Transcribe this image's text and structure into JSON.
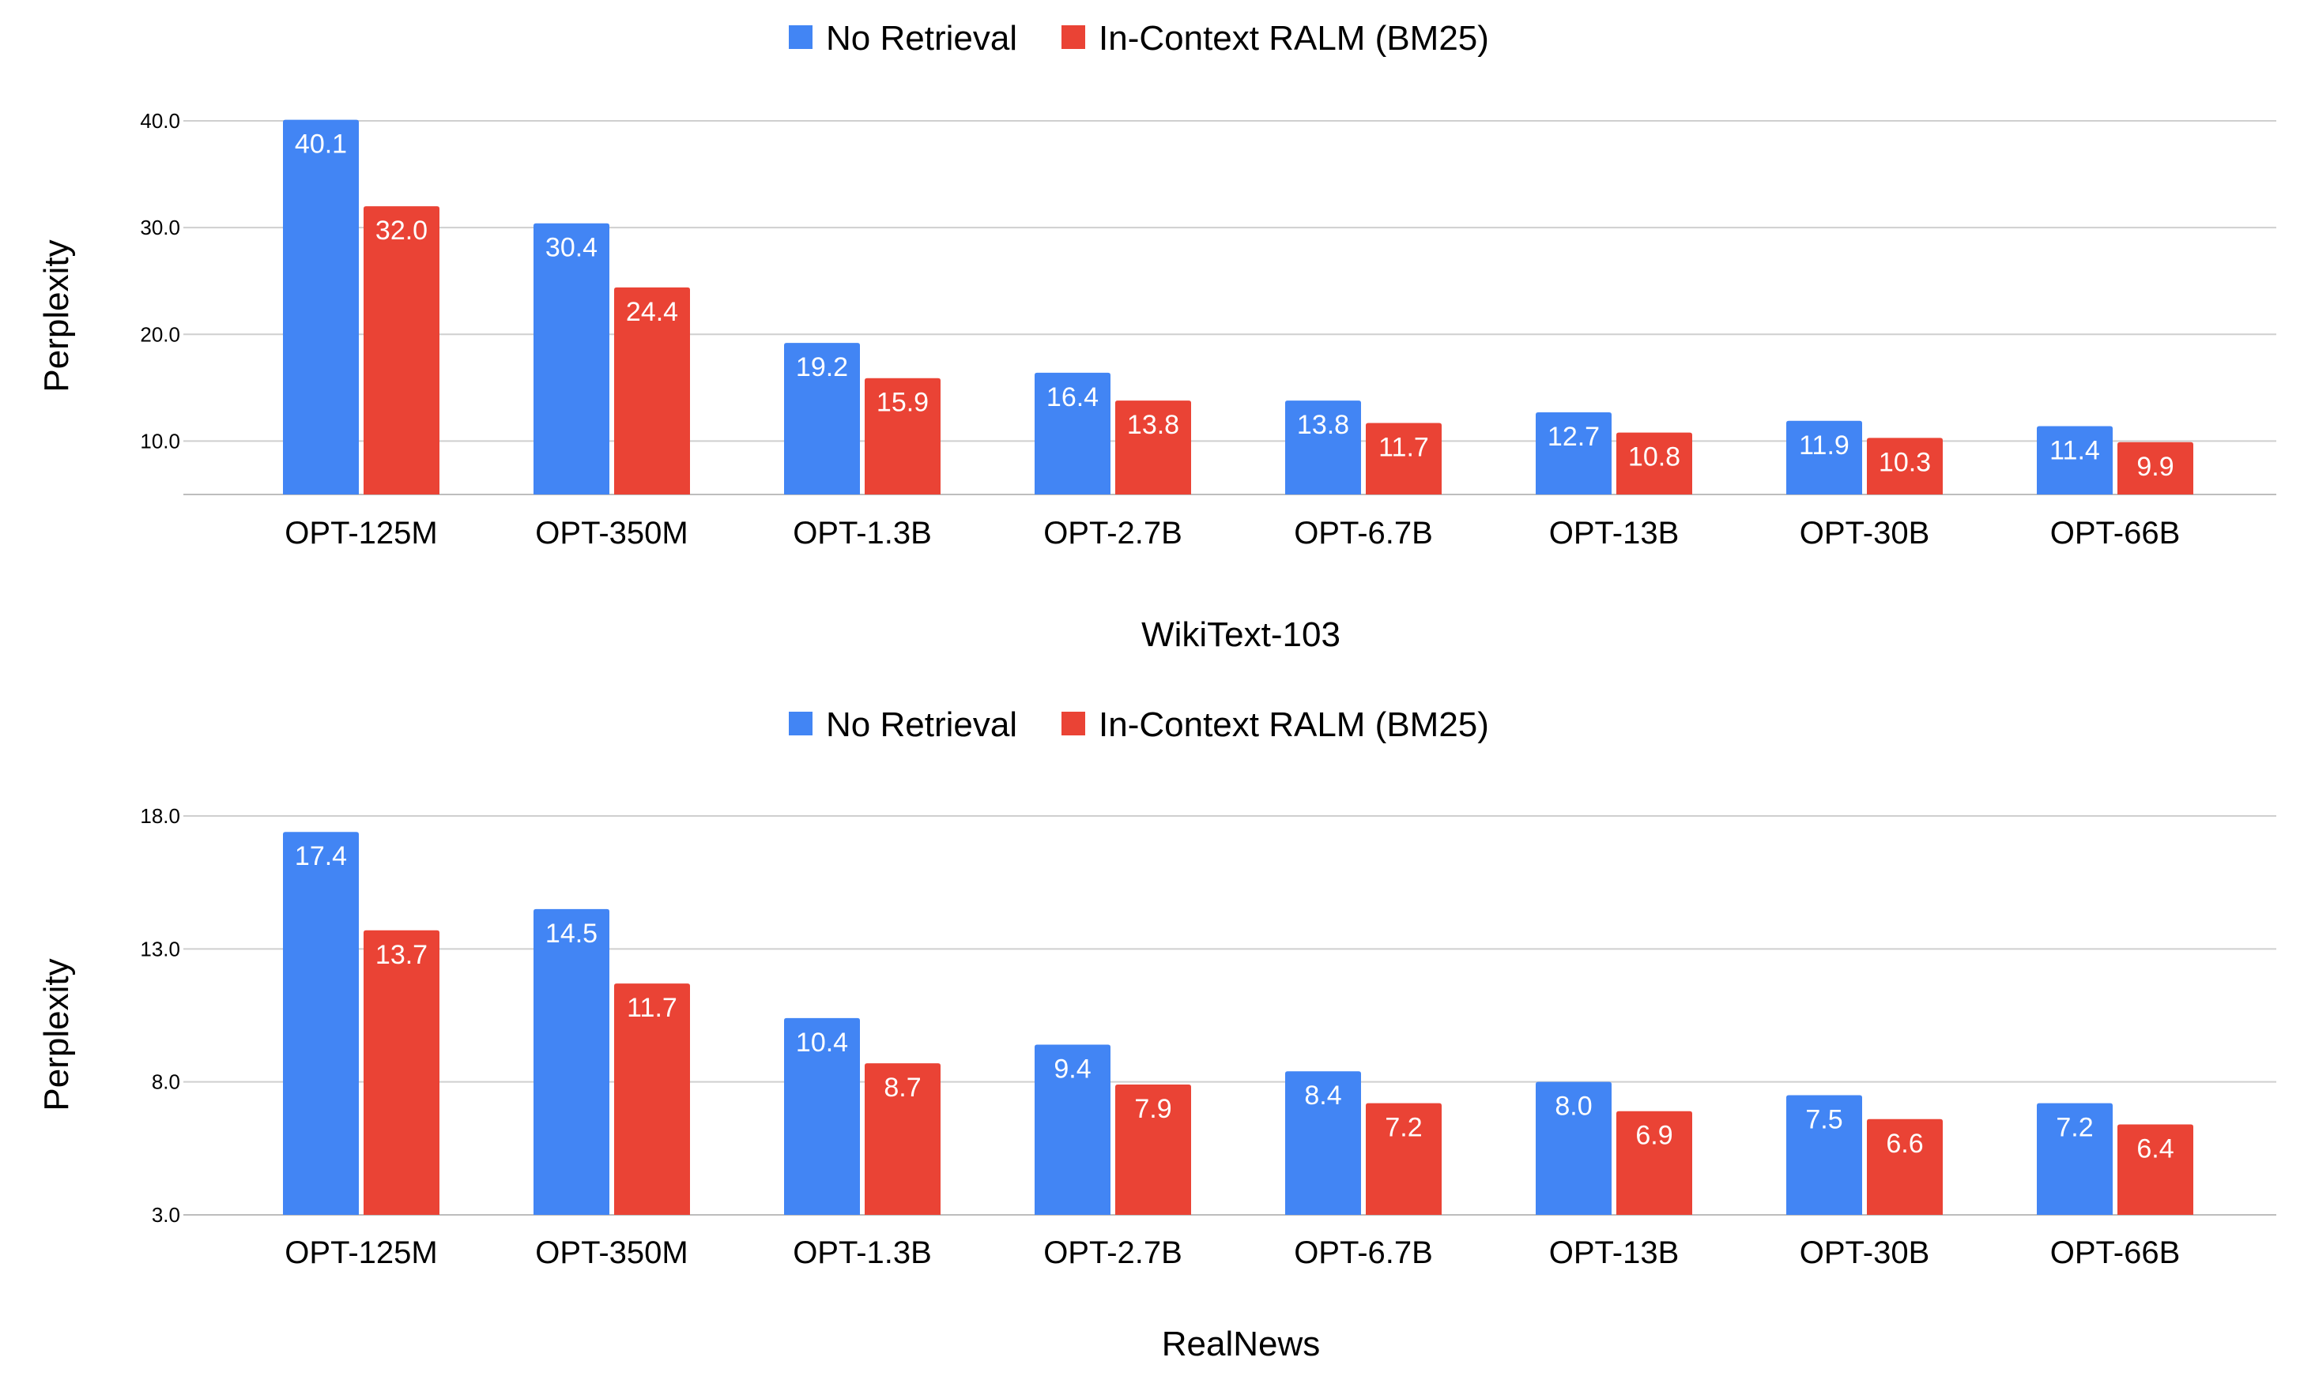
{
  "chart_data": [
    {
      "type": "bar",
      "title": "",
      "xlabel": "WikiText-103",
      "ylabel": "Perplexity",
      "categories": [
        "OPT-125M",
        "OPT-350M",
        "OPT-1.3B",
        "OPT-2.7B",
        "OPT-6.7B",
        "OPT-13B",
        "OPT-30B",
        "OPT-66B"
      ],
      "series": [
        {
          "name": "No Retrieval",
          "color": "#4285f4",
          "values": [
            40.1,
            30.4,
            19.2,
            16.4,
            13.8,
            12.7,
            11.9,
            11.4
          ]
        },
        {
          "name": "In-Context RALM (BM25)",
          "color": "#ea4335",
          "values": [
            32.0,
            24.4,
            15.9,
            13.8,
            11.7,
            10.8,
            10.3,
            9.9
          ]
        }
      ],
      "yticks": [
        "10.0",
        "20.0",
        "30.0",
        "40.0"
      ],
      "ylim": [
        5.0,
        40.0
      ],
      "legend_position": "top",
      "grid": true
    },
    {
      "type": "bar",
      "title": "",
      "xlabel": "RealNews",
      "ylabel": "Perplexity",
      "categories": [
        "OPT-125M",
        "OPT-350M",
        "OPT-1.3B",
        "OPT-2.7B",
        "OPT-6.7B",
        "OPT-13B",
        "OPT-30B",
        "OPT-66B"
      ],
      "series": [
        {
          "name": "No Retrieval",
          "color": "#4285f4",
          "values": [
            17.4,
            14.5,
            10.4,
            9.4,
            8.4,
            8.0,
            7.5,
            7.2
          ]
        },
        {
          "name": "In-Context RALM (BM25)",
          "color": "#ea4335",
          "values": [
            13.7,
            11.7,
            8.7,
            7.9,
            7.2,
            6.9,
            6.6,
            6.4
          ]
        }
      ],
      "yticks": [
        "3.0",
        "8.0",
        "13.0",
        "18.0"
      ],
      "ylim": [
        3.0,
        18.0
      ],
      "legend_position": "top",
      "grid": true
    }
  ]
}
